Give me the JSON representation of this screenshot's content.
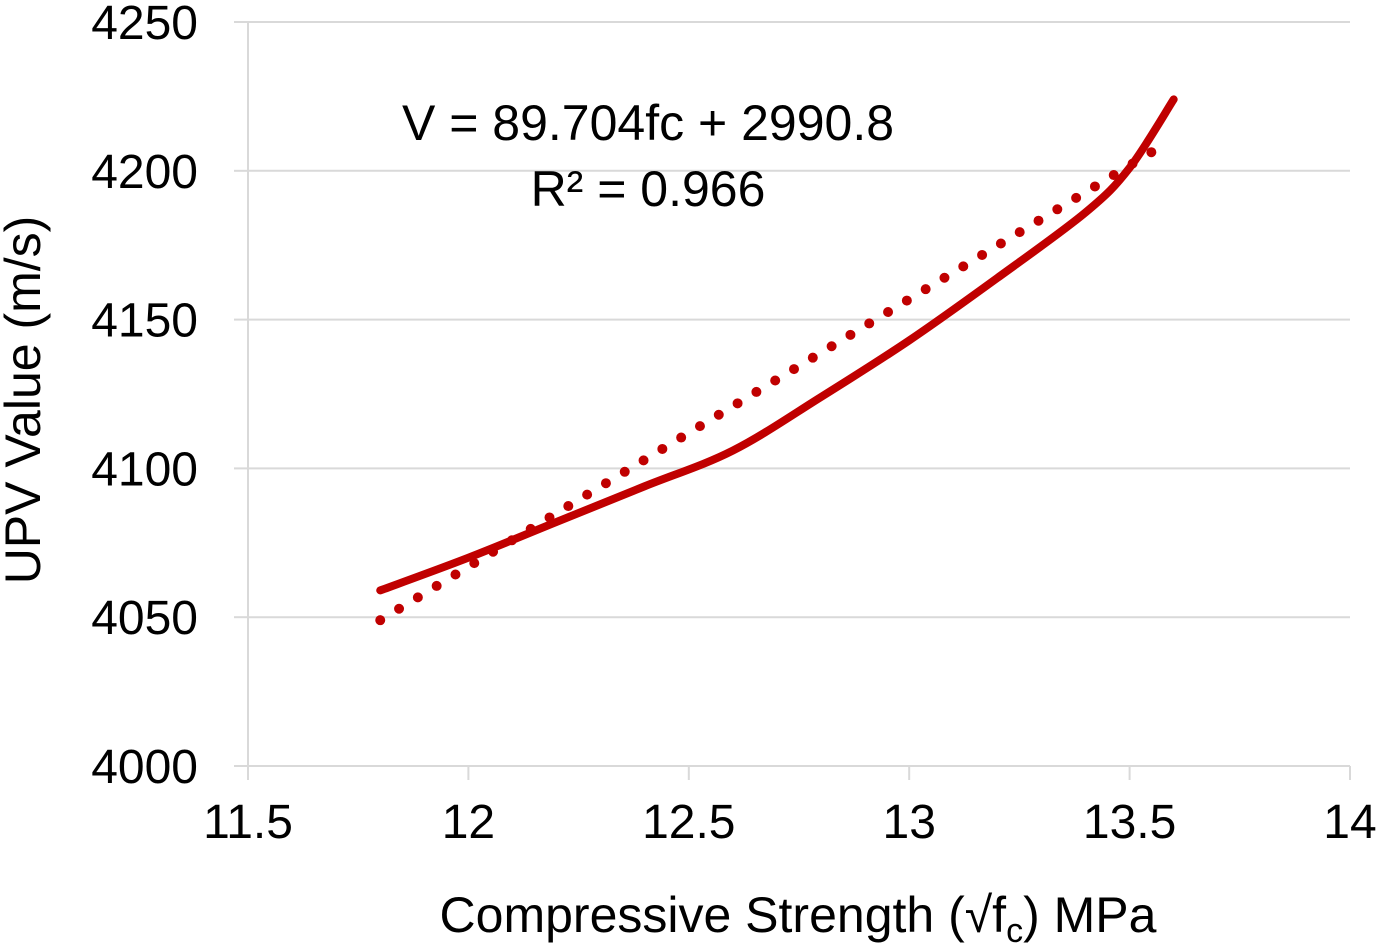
{
  "chart_data": {
    "type": "line",
    "xlabel": {
      "prefix": "Compressive Strength (√f",
      "sub": "c",
      "suffix": ") MPa"
    },
    "ylabel": "UPV Value (m/s)",
    "xlim": [
      11.5,
      14
    ],
    "ylim": [
      4000,
      4250
    ],
    "x_ticks": [
      11.5,
      12,
      12.5,
      13,
      13.5,
      14
    ],
    "x_tick_labels": [
      "11.5",
      "12",
      "12.5",
      "13",
      "13.5",
      "14"
    ],
    "y_ticks": [
      4000,
      4050,
      4100,
      4150,
      4200,
      4250
    ],
    "y_tick_labels": [
      "4000",
      "4050",
      "4100",
      "4150",
      "4200",
      "4250"
    ],
    "grid": {
      "horizontal": true,
      "vertical": false
    },
    "series": [
      {
        "style": "solid",
        "color": "#c00000",
        "x": [
          11.8,
          12.0,
          12.2,
          12.4,
          12.6,
          12.8,
          13.0,
          13.2,
          13.4,
          13.5,
          13.6
        ],
        "y": [
          4059,
          4070,
          4082,
          4094,
          4106,
          4124,
          4143,
          4164,
          4186,
          4201,
          4224
        ]
      },
      {
        "style": "dotted",
        "color": "#c00000",
        "x": [
          11.8,
          13.58
        ],
        "y": [
          4049,
          4209
        ]
      }
    ],
    "annotation": {
      "equation": "V = 89.704fc + 2990.8",
      "r_squared": "R² = 0.966"
    }
  }
}
